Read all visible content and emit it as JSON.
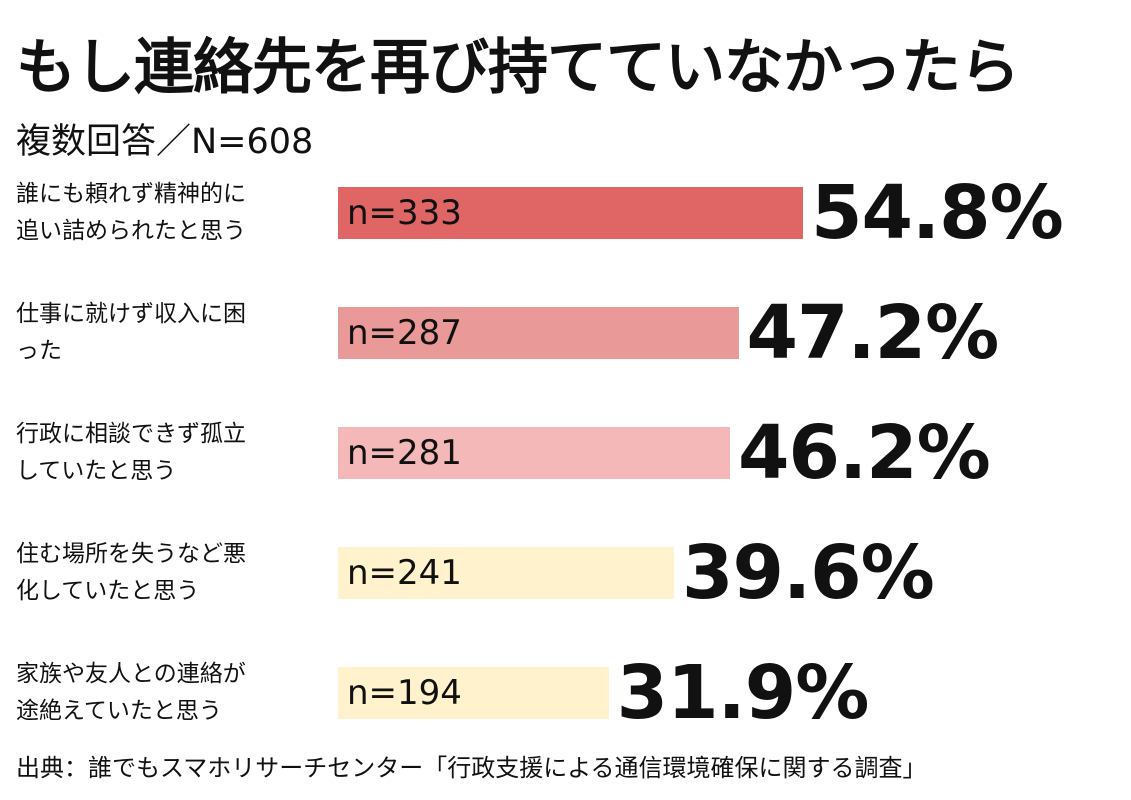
{
  "header": {
    "title": "もし連絡先を再び持てていなかったら",
    "subtitle": "複数回答／N=608"
  },
  "chart_data": {
    "type": "bar",
    "orientation": "horizontal",
    "title": "もし連絡先を再び持てていなかったら",
    "subtitle": "複数回答／N=608",
    "xlim": [
      0,
      100
    ],
    "grid": false,
    "categories": [
      [
        "誰にも頼れず精神的に",
        "追い詰められたと思う"
      ],
      [
        "仕事に就けず収入に困",
        "った"
      ],
      [
        "行政に相談できず孤立",
        "していたと思う"
      ],
      [
        "住む場所を失うなど悪",
        "化していたと思う"
      ],
      [
        "家族や友人との連絡が",
        "途絶えていたと思う"
      ]
    ],
    "values": [
      54.8,
      47.2,
      46.2,
      39.6,
      31.9
    ],
    "value_labels": [
      "54.8%",
      "47.2%",
      "46.2%",
      "39.6%",
      "31.9%"
    ],
    "counts": [
      "n=333",
      "n=287",
      "n=281",
      "n=241",
      "n=194"
    ],
    "colors": [
      "#e06666",
      "#ea9999",
      "#f4b8b8",
      "#fff2cc",
      "#fff2cc"
    ]
  },
  "footer": {
    "source": "出典：誰でもスマホリサーチセンター「行政支援による通信環境確保に関する調査」"
  }
}
